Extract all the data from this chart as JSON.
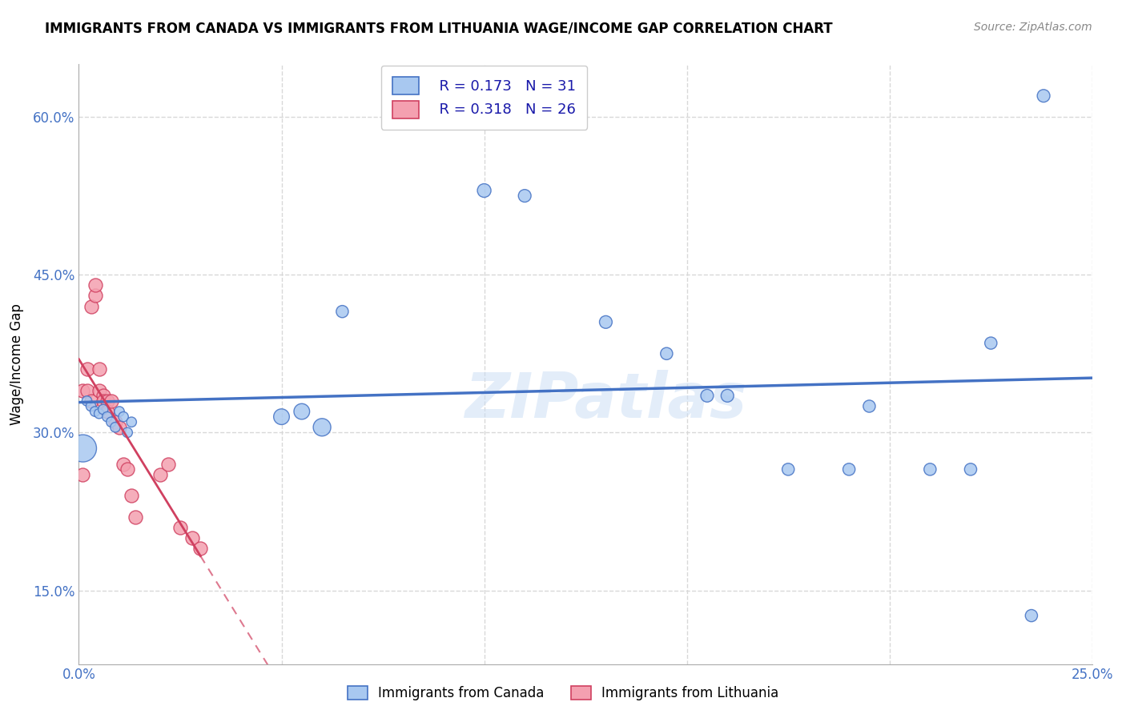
{
  "title": "IMMIGRANTS FROM CANADA VS IMMIGRANTS FROM LITHUANIA WAGE/INCOME GAP CORRELATION CHART",
  "source": "Source: ZipAtlas.com",
  "ylabel": "Wage/Income Gap",
  "legend_label_canada": "Immigrants from Canada",
  "legend_label_lithuania": "Immigrants from Lithuania",
  "r_canada": 0.173,
  "n_canada": 31,
  "r_lithuania": 0.318,
  "n_lithuania": 26,
  "xlim": [
    0.0,
    0.25
  ],
  "ylim": [
    0.08,
    0.65
  ],
  "yticks": [
    0.15,
    0.3,
    0.45,
    0.6
  ],
  "ytick_labels": [
    "15.0%",
    "30.0%",
    "45.0%",
    "60.0%"
  ],
  "xtick_labels": [
    "0.0%",
    "",
    "",
    "",
    "",
    "25.0%"
  ],
  "color_canada": "#a8c8f0",
  "color_canada_line": "#4472c4",
  "color_lithuania": "#f4a0b0",
  "color_lithuania_line": "#d04060",
  "canada_x": [
    0.001,
    0.002,
    0.003,
    0.004,
    0.005,
    0.006,
    0.007,
    0.008,
    0.009,
    0.01,
    0.011,
    0.012,
    0.013,
    0.05,
    0.055,
    0.06,
    0.065,
    0.1,
    0.11,
    0.13,
    0.145,
    0.155,
    0.16,
    0.175,
    0.19,
    0.195,
    0.21,
    0.22,
    0.225,
    0.235,
    0.238
  ],
  "canada_y": [
    0.285,
    0.33,
    0.325,
    0.32,
    0.318,
    0.322,
    0.315,
    0.31,
    0.305,
    0.32,
    0.315,
    0.3,
    0.31,
    0.315,
    0.32,
    0.305,
    0.415,
    0.53,
    0.525,
    0.405,
    0.375,
    0.335,
    0.335,
    0.265,
    0.265,
    0.325,
    0.265,
    0.265,
    0.385,
    0.126,
    0.62
  ],
  "canada_size": [
    600,
    80,
    80,
    80,
    80,
    80,
    80,
    80,
    80,
    80,
    80,
    80,
    80,
    200,
    200,
    250,
    120,
    150,
    130,
    130,
    120,
    130,
    130,
    120,
    120,
    120,
    120,
    120,
    120,
    120,
    130
  ],
  "lithuania_x": [
    0.001,
    0.001,
    0.002,
    0.002,
    0.003,
    0.003,
    0.004,
    0.004,
    0.005,
    0.005,
    0.006,
    0.006,
    0.007,
    0.007,
    0.008,
    0.009,
    0.01,
    0.011,
    0.012,
    0.013,
    0.014,
    0.02,
    0.022,
    0.025,
    0.028,
    0.03
  ],
  "lithuania_y": [
    0.26,
    0.34,
    0.34,
    0.36,
    0.33,
    0.42,
    0.43,
    0.44,
    0.36,
    0.34,
    0.335,
    0.33,
    0.33,
    0.32,
    0.33,
    0.31,
    0.305,
    0.27,
    0.265,
    0.24,
    0.22,
    0.26,
    0.27,
    0.21,
    0.2,
    0.19
  ],
  "background_color": "#ffffff",
  "grid_color": "#d8d8d8"
}
